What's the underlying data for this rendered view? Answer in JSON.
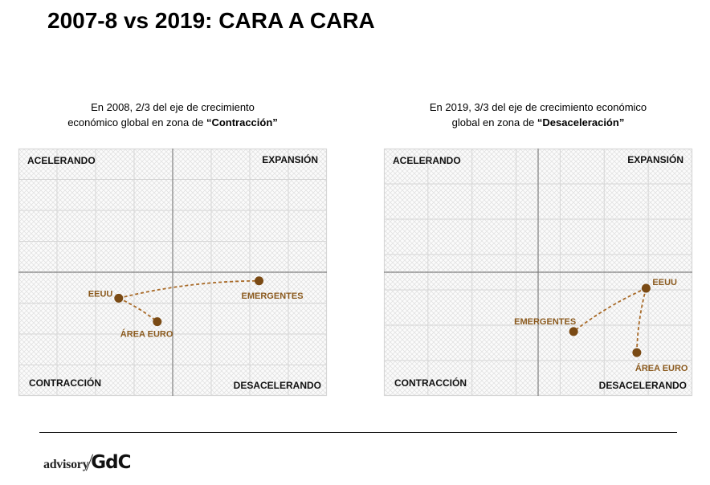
{
  "header": {
    "title": "2007-8 vs 2019: CARA A CARA"
  },
  "quadrant_labels": {
    "top_left": "ACELERANDO",
    "top_right": "EXPANSIÓN",
    "bottom_left": "CONTRACCIÓN",
    "bottom_right": "DESACELERANDO"
  },
  "colors": {
    "point": "#7a4a14",
    "label": "#8b5a1e",
    "axis": "#7f7f7f",
    "grid": "#d6d6d6",
    "hatch": "#e3e3e3",
    "quadrant_text": "#111111"
  },
  "footer": {
    "logo_left": "advisory",
    "logo_right": "GdC"
  },
  "chart_data": [
    {
      "type": "scatter",
      "title_plain": "En 2008, 2/3 del eje de crecimiento económico global en zona de ",
      "title_line1": "En 2008, 2/3 del eje de crecimiento",
      "title_line2_prefix": "económico global en zona de ",
      "title_emphasis": "“Contracción”",
      "xlabel": "",
      "ylabel": "",
      "xlim": [
        -1,
        1
      ],
      "ylim": [
        -1,
        1
      ],
      "grid": true,
      "quadrants": [
        "ACELERANDO",
        "EXPANSIÓN",
        "CONTRACCIÓN",
        "DESACELERANDO"
      ],
      "points": [
        {
          "name": "EEUU",
          "x": -0.35,
          "y": -0.21
        },
        {
          "name": "ÁREA EURO",
          "x": -0.1,
          "y": -0.4
        },
        {
          "name": "EMERGENTES",
          "x": 0.56,
          "y": -0.07
        }
      ],
      "connections": [
        [
          "EEUU",
          "EMERGENTES"
        ],
        [
          "EEUU",
          "ÁREA EURO"
        ]
      ]
    },
    {
      "type": "scatter",
      "title_line1": "En 2019, 3/3 del eje de crecimiento económico",
      "title_line2_prefix": "global en zona de ",
      "title_emphasis": "“Desaceleración”",
      "xlabel": "",
      "ylabel": "",
      "xlim": [
        -1,
        1
      ],
      "ylim": [
        -1,
        1
      ],
      "grid": true,
      "quadrants": [
        "ACELERANDO",
        "EXPANSIÓN",
        "CONTRACCIÓN",
        "DESACELERANDO"
      ],
      "points": [
        {
          "name": "EEUU",
          "x": 0.7,
          "y": -0.13
        },
        {
          "name": "EMERGENTES",
          "x": 0.23,
          "y": -0.48
        },
        {
          "name": "ÁREA EURO",
          "x": 0.64,
          "y": -0.65
        }
      ],
      "connections": [
        [
          "EEUU",
          "EMERGENTES"
        ],
        [
          "EEUU",
          "ÁREA EURO"
        ]
      ]
    }
  ]
}
